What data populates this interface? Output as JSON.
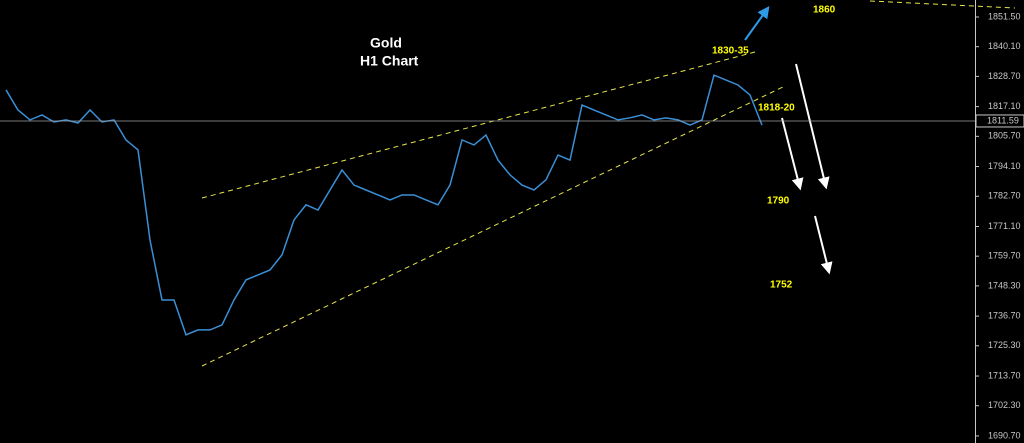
{
  "chart_data": {
    "type": "line",
    "title": "Gold",
    "subtitle": "H1 Chart",
    "annotations": [
      "1860",
      "1830-35",
      "1818-20",
      "1790",
      "1752"
    ],
    "color": "#3a8fd6",
    "values": [
      1823.5,
      1815.8,
      1812.0,
      1813.9,
      1811.2,
      1812.0,
      1810.8,
      1815.8,
      1811.2,
      1812.0,
      1804.3,
      1800.5,
      1765.9,
      1742.9,
      1742.9,
      1729.5,
      1731.4,
      1731.4,
      1733.3,
      1742.9,
      1750.6,
      1752.5,
      1754.4,
      1760.2,
      1773.6,
      1779.4,
      1777.4,
      1785.1,
      1792.8,
      1787.0,
      1785.1,
      1783.2,
      1781.3,
      1783.2,
      1783.2,
      1781.3,
      1779.4,
      1787.0,
      1804.3,
      1802.4,
      1806.2,
      1796.6,
      1790.9,
      1787.0,
      1785.1,
      1789.0,
      1798.5,
      1796.6,
      1817.7,
      1815.8,
      1813.9,
      1812.0,
      1812.8,
      1813.9,
      1812.0,
      1812.8,
      1812.0,
      1810.0,
      1812.0,
      1829.2,
      1827.3,
      1825.4,
      1821.6,
      1810.0
    ],
    "current_price": 1811.59,
    "ylim": [
      1688.0,
      1858.02
    ],
    "yticks": [
      {
        "value": 1851.5,
        "label": "1851.50"
      },
      {
        "value": 1840.1,
        "label": "1840.10"
      },
      {
        "value": 1828.7,
        "label": "1828.70"
      },
      {
        "value": 1817.1,
        "label": "1817.10"
      },
      {
        "value": 1805.7,
        "label": "1805.70"
      },
      {
        "value": 1794.1,
        "label": "1794.10"
      },
      {
        "value": 1782.7,
        "label": "1782.70"
      },
      {
        "value": 1771.1,
        "label": "1771.10"
      },
      {
        "value": 1759.7,
        "label": "1759.70"
      },
      {
        "value": 1748.3,
        "label": "1748.30"
      },
      {
        "value": 1736.7,
        "label": "1736.70"
      },
      {
        "value": 1725.3,
        "label": "1725.30"
      },
      {
        "value": 1713.7,
        "label": "1713.70"
      },
      {
        "value": 1702.3,
        "label": "1702.30"
      },
      {
        "value": 1690.7,
        "label": "1690.70"
      }
    ]
  }
}
